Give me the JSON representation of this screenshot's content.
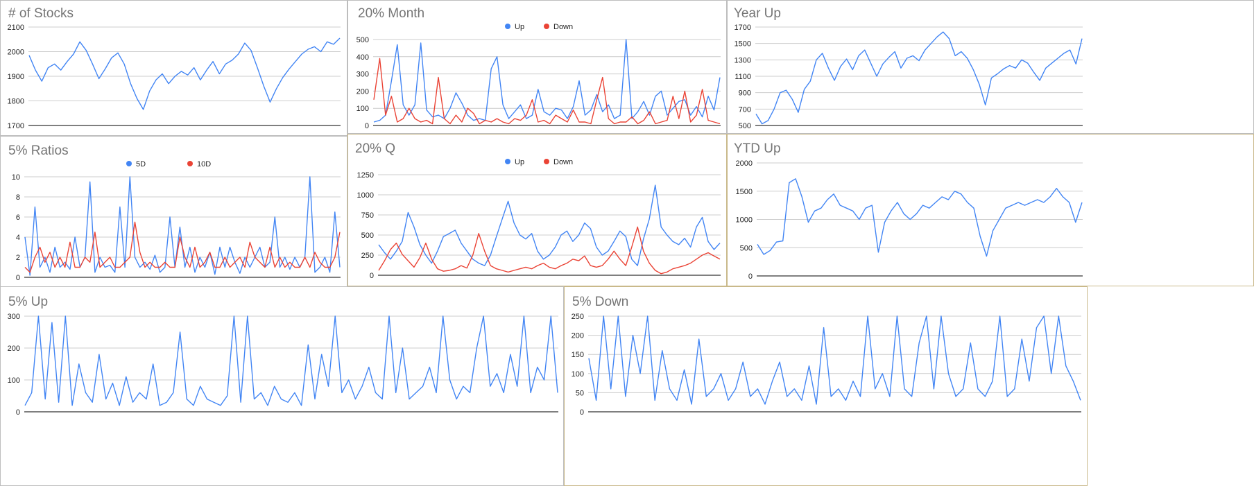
{
  "dashboard": {
    "colors": {
      "up": "#4285f4",
      "down": "#ea4335",
      "grid": "#cccccc",
      "axis": "#333333",
      "title": "#757575"
    }
  },
  "chart_data": [
    {
      "id": "stocks",
      "type": "line",
      "title": "# of Stocks",
      "ylim": [
        1700,
        2100
      ],
      "yticks": [
        1700,
        1800,
        1900,
        2000,
        2100
      ],
      "grid": true,
      "legend": [],
      "series": [
        {
          "name": "",
          "color": "#4285f4",
          "values": [
            1985,
            1925,
            1880,
            1935,
            1950,
            1925,
            1960,
            1990,
            2040,
            2005,
            1950,
            1890,
            1930,
            1975,
            1995,
            1950,
            1870,
            1810,
            1765,
            1840,
            1885,
            1910,
            1870,
            1900,
            1920,
            1905,
            1935,
            1885,
            1925,
            1960,
            1910,
            1950,
            1965,
            1990,
            2035,
            2005,
            1935,
            1860,
            1795,
            1850,
            1895,
            1930,
            1960,
            1990,
            2010,
            2020,
            2000,
            2040,
            2030,
            2055
          ]
        }
      ]
    },
    {
      "id": "month",
      "type": "line",
      "title": "20% Month",
      "ylim": [
        0,
        500
      ],
      "yticks": [
        0,
        100,
        200,
        300,
        400,
        500
      ],
      "grid": true,
      "legend": [
        "Up",
        "Down"
      ],
      "series": [
        {
          "name": "Up",
          "color": "#4285f4",
          "values": [
            20,
            30,
            60,
            260,
            470,
            120,
            60,
            120,
            480,
            90,
            50,
            60,
            40,
            100,
            190,
            130,
            60,
            30,
            40,
            30,
            330,
            400,
            120,
            40,
            80,
            120,
            40,
            60,
            210,
            80,
            60,
            100,
            90,
            40,
            110,
            260,
            60,
            90,
            180,
            80,
            120,
            40,
            60,
            500,
            40,
            80,
            140,
            60,
            170,
            200,
            60,
            100,
            140,
            150,
            60,
            110,
            50,
            170,
            90,
            280
          ]
        },
        {
          "name": "Down",
          "color": "#ea4335",
          "values": [
            150,
            390,
            60,
            170,
            20,
            40,
            100,
            40,
            20,
            30,
            10,
            280,
            40,
            10,
            60,
            20,
            100,
            70,
            10,
            30,
            20,
            40,
            20,
            10,
            40,
            30,
            60,
            150,
            20,
            30,
            10,
            60,
            40,
            20,
            90,
            20,
            20,
            10,
            150,
            280,
            40,
            10,
            20,
            20,
            50,
            10,
            30,
            80,
            10,
            20,
            30,
            170,
            40,
            200,
            20,
            60,
            210,
            30,
            20,
            10
          ]
        }
      ]
    },
    {
      "id": "yearup",
      "type": "line",
      "title": "Year Up",
      "ylim": [
        500,
        1700
      ],
      "yticks": [
        500,
        700,
        900,
        1100,
        1300,
        1500,
        1700
      ],
      "grid": true,
      "legend": [],
      "series": [
        {
          "name": "",
          "color": "#4285f4",
          "values": [
            640,
            520,
            560,
            700,
            900,
            930,
            820,
            660,
            940,
            1040,
            1300,
            1380,
            1200,
            1050,
            1220,
            1310,
            1180,
            1350,
            1420,
            1260,
            1100,
            1250,
            1330,
            1400,
            1200,
            1320,
            1350,
            1290,
            1420,
            1500,
            1580,
            1640,
            1560,
            1350,
            1400,
            1320,
            1180,
            1000,
            750,
            1080,
            1130,
            1190,
            1230,
            1200,
            1300,
            1260,
            1150,
            1050,
            1200,
            1260,
            1320,
            1380,
            1420,
            1250,
            1560
          ]
        }
      ]
    },
    {
      "id": "ratios",
      "type": "line",
      "title": "5% Ratios",
      "ylim": [
        0,
        10
      ],
      "yticks": [
        0,
        2,
        4,
        6,
        8,
        10
      ],
      "grid": true,
      "legend": [
        "5D",
        "10D"
      ],
      "series": [
        {
          "name": "5D",
          "color": "#4285f4",
          "values": [
            4,
            0.2,
            7,
            1,
            2,
            0.5,
            3,
            1,
            1.5,
            0.8,
            4,
            1,
            2,
            9.5,
            0.5,
            2,
            1,
            1.2,
            0.5,
            7,
            1,
            10,
            2,
            1,
            1.5,
            0.8,
            2.2,
            0.5,
            1,
            6,
            1,
            5,
            1,
            3,
            0.5,
            2,
            1,
            2.5,
            0.3,
            3,
            1,
            3,
            1.5,
            0.4,
            2,
            1,
            2,
            3,
            1,
            1.5,
            6,
            1,
            2,
            0.8,
            2,
            1,
            2,
            10,
            0.5,
            1,
            2,
            0.5,
            6.5,
            1
          ]
        },
        {
          "name": "10D",
          "color": "#ea4335",
          "values": [
            1,
            0.5,
            2,
            3,
            1.5,
            2.5,
            1,
            2,
            1,
            3.5,
            1,
            1,
            2,
            1.5,
            4.5,
            1,
            1.5,
            2,
            1,
            1,
            1.5,
            2,
            5.5,
            2.5,
            1,
            1.5,
            1,
            1,
            1.5,
            1,
            1,
            4,
            2,
            1,
            3,
            1,
            1.5,
            2.5,
            1,
            1,
            2,
            1,
            1.5,
            2,
            1,
            3.5,
            2,
            1.5,
            1,
            3,
            1,
            2,
            1,
            1.5,
            1,
            1,
            2,
            1,
            2.5,
            1.5,
            1,
            1,
            2,
            4.5
          ]
        }
      ]
    },
    {
      "id": "quarter",
      "type": "line",
      "title": "20% Q",
      "ylim": [
        0,
        1250
      ],
      "yticks": [
        0,
        250,
        500,
        750,
        1000,
        1250
      ],
      "grid": true,
      "legend": [
        "Up",
        "Down"
      ],
      "series": [
        {
          "name": "Up",
          "color": "#4285f4",
          "values": [
            380,
            280,
            200,
            300,
            420,
            780,
            600,
            380,
            250,
            150,
            300,
            480,
            520,
            560,
            400,
            300,
            200,
            150,
            120,
            250,
            480,
            700,
            920,
            650,
            500,
            450,
            520,
            300,
            200,
            250,
            350,
            500,
            550,
            420,
            500,
            650,
            580,
            350,
            250,
            300,
            420,
            550,
            480,
            200,
            120,
            450,
            700,
            1120,
            600,
            500,
            420,
            380,
            460,
            350,
            600,
            720,
            420,
            320,
            400
          ]
        },
        {
          "name": "Down",
          "color": "#ea4335",
          "values": [
            60,
            180,
            320,
            400,
            260,
            180,
            100,
            220,
            400,
            200,
            80,
            50,
            60,
            80,
            120,
            90,
            250,
            520,
            300,
            120,
            80,
            60,
            40,
            60,
            80,
            100,
            80,
            120,
            150,
            100,
            80,
            120,
            150,
            200,
            180,
            240,
            120,
            100,
            120,
            200,
            300,
            200,
            120,
            350,
            600,
            300,
            150,
            60,
            20,
            40,
            80,
            100,
            120,
            150,
            200,
            250,
            280,
            240,
            200
          ]
        }
      ]
    },
    {
      "id": "ytdup",
      "type": "line",
      "title": "YTD Up",
      "ylim": [
        0,
        2000
      ],
      "yticks": [
        0,
        500,
        1000,
        1500,
        2000
      ],
      "grid": true,
      "legend": [],
      "series": [
        {
          "name": "",
          "color": "#4285f4",
          "values": [
            560,
            380,
            450,
            600,
            620,
            1650,
            1720,
            1400,
            950,
            1150,
            1200,
            1350,
            1450,
            1250,
            1200,
            1150,
            1000,
            1200,
            1250,
            420,
            950,
            1150,
            1300,
            1100,
            1000,
            1100,
            1250,
            1200,
            1300,
            1400,
            1350,
            1500,
            1450,
            1300,
            1200,
            700,
            350,
            800,
            1000,
            1200,
            1250,
            1300,
            1250,
            1300,
            1350,
            1300,
            1400,
            1550,
            1400,
            1300,
            950,
            1300
          ]
        }
      ]
    },
    {
      "id": "up5",
      "type": "line",
      "title": "5% Up",
      "ylim": [
        0,
        300
      ],
      "yticks": [
        0,
        100,
        200,
        300
      ],
      "grid": true,
      "legend": [],
      "series": [
        {
          "name": "",
          "color": "#4285f4",
          "values": [
            20,
            60,
            300,
            40,
            280,
            30,
            300,
            20,
            150,
            60,
            30,
            180,
            40,
            90,
            20,
            110,
            30,
            60,
            40,
            150,
            20,
            30,
            60,
            250,
            40,
            20,
            80,
            40,
            30,
            20,
            50,
            300,
            30,
            300,
            40,
            60,
            20,
            80,
            40,
            30,
            60,
            20,
            210,
            40,
            180,
            80,
            300,
            60,
            100,
            40,
            80,
            140,
            60,
            40,
            300,
            60,
            200,
            40,
            60,
            80,
            140,
            60,
            300,
            100,
            40,
            80,
            60,
            200,
            300,
            80,
            120,
            60,
            180,
            80,
            300,
            60,
            140,
            100,
            300,
            60
          ]
        }
      ]
    },
    {
      "id": "down5",
      "type": "line",
      "title": "5% Down",
      "ylim": [
        0,
        250
      ],
      "yticks": [
        0,
        50,
        100,
        150,
        200,
        250
      ],
      "grid": true,
      "legend": [],
      "series": [
        {
          "name": "",
          "color": "#4285f4",
          "values": [
            140,
            30,
            250,
            60,
            250,
            40,
            200,
            100,
            250,
            30,
            160,
            60,
            30,
            110,
            20,
            190,
            40,
            60,
            100,
            30,
            60,
            130,
            40,
            60,
            20,
            80,
            130,
            40,
            60,
            30,
            120,
            20,
            220,
            40,
            60,
            30,
            80,
            40,
            250,
            60,
            100,
            40,
            250,
            60,
            40,
            180,
            250,
            60,
            250,
            100,
            40,
            60,
            180,
            60,
            40,
            80,
            250,
            40,
            60,
            190,
            80,
            220,
            250,
            100,
            250,
            120,
            80,
            30
          ]
        }
      ]
    }
  ]
}
